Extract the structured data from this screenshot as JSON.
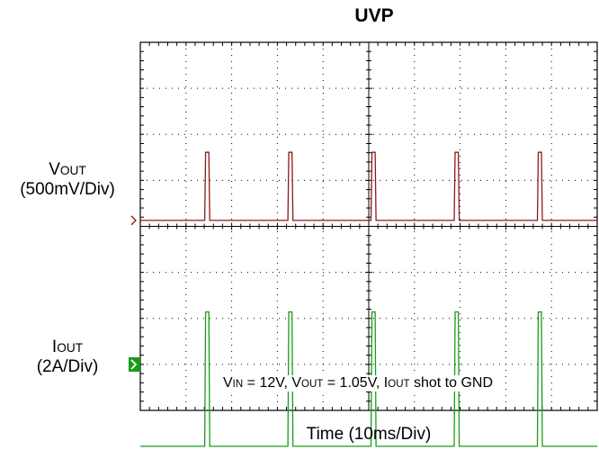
{
  "title": "UVP",
  "vout_label": {
    "name": "V",
    "sub": "OUT",
    "scale": "(500mV/Div)"
  },
  "iout_label": {
    "name": "I",
    "sub": "OUT",
    "scale": "(2A/Div)"
  },
  "xlabel": "Time  (10ms/Div)",
  "note": {
    "vin_name": "V",
    "vin_sub": "IN",
    "vin_value": " = 12V, ",
    "vout_name": "V",
    "vout_sub": "OUT",
    "vout_value": " = 1.05V, ",
    "iout_name": "I",
    "iout_sub": "OUT",
    "iout_value": " shot to GND"
  },
  "colors": {
    "vout": "#8b1a1a",
    "iout": "#1a9b1a",
    "grid": "#000000"
  },
  "chart_data": {
    "type": "line",
    "title": "UVP",
    "xlabel": "Time  (10ms/Div)",
    "x_divisions": 10,
    "y_divisions": 8,
    "xlim": [
      0,
      100
    ],
    "grid": true,
    "series": [
      {
        "name": "VOUT",
        "unit_per_div": "500mV/Div",
        "x": [
          0,
          14.1,
          14.3,
          15.0,
          15.2,
          32.3,
          32.5,
          33.2,
          33.4,
          50.5,
          50.7,
          51.4,
          51.6,
          68.7,
          68.9,
          69.6,
          69.8,
          86.9,
          87.1,
          87.8,
          88.0,
          100
        ],
        "y": [
          0,
          0,
          1.48,
          1.48,
          0,
          0,
          1.48,
          1.48,
          0,
          0,
          1.48,
          1.48,
          0,
          0,
          1.48,
          1.48,
          0,
          0,
          1.48,
          1.48,
          0,
          0
        ]
      },
      {
        "name": "IOUT",
        "unit_per_div": "2A/Div",
        "x": [
          0,
          14.1,
          14.3,
          15.0,
          15.2,
          32.3,
          32.5,
          33.2,
          33.4,
          50.5,
          50.7,
          51.4,
          51.6,
          68.7,
          68.9,
          69.6,
          69.8,
          86.9,
          87.1,
          87.8,
          88.0,
          100
        ],
        "y": [
          0,
          0,
          2.92,
          2.92,
          0,
          0,
          2.92,
          2.92,
          0,
          0,
          2.92,
          2.92,
          0,
          0,
          2.92,
          2.92,
          0,
          0,
          2.92,
          2.92,
          0,
          0
        ]
      }
    ]
  }
}
